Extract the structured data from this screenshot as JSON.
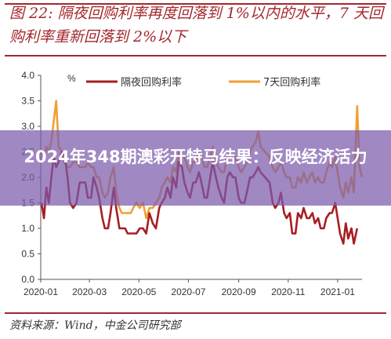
{
  "figure": {
    "title": "图 22: 隔夜回购利率再度回落到 1%以内的水平，7 天回购利率重新回落到 2%以下",
    "source": "资料来源：Wind，中金公司研究部"
  },
  "overlay": {
    "text": "2024年348期澳彩开特马结果：反映经济活力"
  },
  "colors": {
    "accent": "#a3272c",
    "overnight": "#a61e22",
    "seven_day": "#f0a030",
    "overlay": "#7c5aac"
  },
  "chart_data": {
    "type": "line",
    "unit_label": "%",
    "x_ticks": [
      "2020-01",
      "2020-03",
      "2020-05",
      "2020-07",
      "2020-09",
      "2020-11",
      "2021-01"
    ],
    "y_ticks": [
      "0.0",
      "0.5",
      "1.0",
      "1.5",
      "2.0",
      "2.5",
      "3.0",
      "3.5",
      "4.0"
    ],
    "ylim": [
      0,
      4
    ],
    "xlim": [
      "2020-01-01",
      "2021-01-31"
    ],
    "legend_position": "top",
    "series": [
      {
        "name": "隔夜回购利率",
        "points": [
          [
            "2020-01-02",
            1.5
          ],
          [
            "2020-01-05",
            1.2
          ],
          [
            "2020-01-08",
            1.8
          ],
          [
            "2020-01-11",
            1.5
          ],
          [
            "2020-01-14",
            2.0
          ],
          [
            "2020-01-17",
            2.4
          ],
          [
            "2020-01-20",
            2.2
          ],
          [
            "2020-01-23",
            2.3
          ],
          [
            "2020-01-27",
            2.5
          ],
          [
            "2020-01-30",
            2.5
          ],
          [
            "2020-02-03",
            2.0
          ],
          [
            "2020-02-06",
            1.5
          ],
          [
            "2020-02-10",
            1.4
          ],
          [
            "2020-02-14",
            1.5
          ],
          [
            "2020-02-18",
            1.9
          ],
          [
            "2020-02-21",
            1.9
          ],
          [
            "2020-02-25",
            1.9
          ],
          [
            "2020-02-28",
            1.6
          ],
          [
            "2020-03-03",
            1.6
          ],
          [
            "2020-03-06",
            2.0
          ],
          [
            "2020-03-10",
            1.8
          ],
          [
            "2020-03-13",
            1.6
          ],
          [
            "2020-03-17",
            1.2
          ],
          [
            "2020-03-20",
            1.0
          ],
          [
            "2020-03-24",
            1.0
          ],
          [
            "2020-03-27",
            1.3
          ],
          [
            "2020-03-31",
            1.8
          ],
          [
            "2020-04-03",
            1.4
          ],
          [
            "2020-04-07",
            1.0
          ],
          [
            "2020-04-10",
            1.0
          ],
          [
            "2020-04-14",
            1.0
          ],
          [
            "2020-04-17",
            0.9
          ],
          [
            "2020-04-21",
            0.9
          ],
          [
            "2020-04-24",
            0.9
          ],
          [
            "2020-04-28",
            0.9
          ],
          [
            "2020-05-02",
            1.0
          ],
          [
            "2020-05-06",
            1.0
          ],
          [
            "2020-05-10",
            0.9
          ],
          [
            "2020-05-14",
            1.3
          ],
          [
            "2020-05-18",
            1.1
          ],
          [
            "2020-05-22",
            1.0
          ],
          [
            "2020-05-26",
            1.4
          ],
          [
            "2020-05-29",
            1.5
          ],
          [
            "2020-06-02",
            1.6
          ],
          [
            "2020-06-05",
            1.8
          ],
          [
            "2020-06-09",
            1.6
          ],
          [
            "2020-06-12",
            2.0
          ],
          [
            "2020-06-16",
            1.8
          ],
          [
            "2020-06-19",
            2.3
          ],
          [
            "2020-06-23",
            2.2
          ],
          [
            "2020-06-26",
            1.9
          ],
          [
            "2020-06-30",
            1.7
          ],
          [
            "2020-07-03",
            1.6
          ],
          [
            "2020-07-07",
            1.9
          ],
          [
            "2020-07-10",
            1.9
          ],
          [
            "2020-07-14",
            2.1
          ],
          [
            "2020-07-17",
            1.9
          ],
          [
            "2020-07-21",
            1.6
          ],
          [
            "2020-07-24",
            1.6
          ],
          [
            "2020-07-28",
            2.0
          ],
          [
            "2020-07-31",
            2.3
          ],
          [
            "2020-08-04",
            2.0
          ],
          [
            "2020-08-07",
            1.8
          ],
          [
            "2020-08-11",
            1.6
          ],
          [
            "2020-08-14",
            1.5
          ],
          [
            "2020-08-18",
            2.0
          ],
          [
            "2020-08-21",
            2.1
          ],
          [
            "2020-08-25",
            2.0
          ],
          [
            "2020-08-28",
            2.0
          ],
          [
            "2020-09-01",
            1.6
          ],
          [
            "2020-09-04",
            1.5
          ],
          [
            "2020-09-08",
            1.5
          ],
          [
            "2020-09-11",
            1.7
          ],
          [
            "2020-09-15",
            2.0
          ],
          [
            "2020-09-18",
            2.0
          ],
          [
            "2020-09-22",
            2.1
          ],
          [
            "2020-09-25",
            2.2
          ],
          [
            "2020-09-28",
            2.1
          ],
          [
            "2020-10-09",
            1.9
          ],
          [
            "2020-10-13",
            1.5
          ],
          [
            "2020-10-16",
            1.4
          ],
          [
            "2020-10-20",
            1.5
          ],
          [
            "2020-10-23",
            1.7
          ],
          [
            "2020-10-27",
            1.3
          ],
          [
            "2020-10-30",
            1.2
          ],
          [
            "2020-11-03",
            1.3
          ],
          [
            "2020-11-06",
            0.9
          ],
          [
            "2020-11-10",
            0.9
          ],
          [
            "2020-11-13",
            1.3
          ],
          [
            "2020-11-17",
            1.2
          ],
          [
            "2020-11-20",
            1.4
          ],
          [
            "2020-11-24",
            1.2
          ],
          [
            "2020-11-27",
            1.2
          ],
          [
            "2020-12-01",
            1.3
          ],
          [
            "2020-12-04",
            1.1
          ],
          [
            "2020-12-08",
            1.2
          ],
          [
            "2020-12-11",
            1.0
          ],
          [
            "2020-12-15",
            1.0
          ],
          [
            "2020-12-18",
            1.2
          ],
          [
            "2020-12-22",
            1.3
          ],
          [
            "2020-12-25",
            1.3
          ],
          [
            "2020-12-29",
            1.5
          ],
          [
            "2021-01-04",
            0.9
          ],
          [
            "2021-01-08",
            0.7
          ],
          [
            "2021-01-11",
            1.1
          ],
          [
            "2021-01-14",
            0.8
          ],
          [
            "2021-01-18",
            1.0
          ],
          [
            "2021-01-21",
            0.7
          ],
          [
            "2021-01-25",
            1.0
          ]
        ]
      },
      {
        "name": "7天回购利率",
        "points": [
          [
            "2020-01-02",
            2.5
          ],
          [
            "2020-01-05",
            2.4
          ],
          [
            "2020-01-08",
            2.6
          ],
          [
            "2020-01-11",
            2.5
          ],
          [
            "2020-01-14",
            2.7
          ],
          [
            "2020-01-17",
            3.1
          ],
          [
            "2020-01-20",
            3.5
          ],
          [
            "2020-01-23",
            2.6
          ],
          [
            "2020-01-27",
            2.5
          ],
          [
            "2020-01-30",
            2.3
          ],
          [
            "2020-02-03",
            2.2
          ],
          [
            "2020-02-06",
            2.2
          ],
          [
            "2020-02-10",
            2.3
          ],
          [
            "2020-02-14",
            2.3
          ],
          [
            "2020-02-18",
            2.2
          ],
          [
            "2020-02-21",
            2.2
          ],
          [
            "2020-02-25",
            2.2
          ],
          [
            "2020-02-28",
            2.3
          ],
          [
            "2020-03-03",
            2.2
          ],
          [
            "2020-03-06",
            2.2
          ],
          [
            "2020-03-10",
            2.0
          ],
          [
            "2020-03-13",
            2.0
          ],
          [
            "2020-03-17",
            1.7
          ],
          [
            "2020-03-20",
            1.6
          ],
          [
            "2020-03-24",
            1.7
          ],
          [
            "2020-03-27",
            2.0
          ],
          [
            "2020-03-31",
            2.2
          ],
          [
            "2020-04-03",
            1.7
          ],
          [
            "2020-04-07",
            1.4
          ],
          [
            "2020-04-10",
            1.3
          ],
          [
            "2020-04-14",
            1.3
          ],
          [
            "2020-04-17",
            1.3
          ],
          [
            "2020-04-21",
            1.3
          ],
          [
            "2020-04-24",
            1.4
          ],
          [
            "2020-04-28",
            1.5
          ],
          [
            "2020-05-02",
            1.4
          ],
          [
            "2020-05-06",
            1.5
          ],
          [
            "2020-05-10",
            1.2
          ],
          [
            "2020-05-14",
            1.4
          ],
          [
            "2020-05-18",
            1.4
          ],
          [
            "2020-05-22",
            1.5
          ],
          [
            "2020-05-26",
            1.6
          ],
          [
            "2020-05-29",
            1.8
          ],
          [
            "2020-06-02",
            1.9
          ],
          [
            "2020-06-05",
            2.0
          ],
          [
            "2020-06-09",
            1.9
          ],
          [
            "2020-06-12",
            2.2
          ],
          [
            "2020-06-16",
            2.1
          ],
          [
            "2020-06-19",
            2.5
          ],
          [
            "2020-06-23",
            2.4
          ],
          [
            "2020-06-26",
            2.4
          ],
          [
            "2020-06-30",
            2.2
          ],
          [
            "2020-07-03",
            2.1
          ],
          [
            "2020-07-07",
            2.3
          ],
          [
            "2020-07-10",
            2.3
          ],
          [
            "2020-07-14",
            2.5
          ],
          [
            "2020-07-17",
            2.4
          ],
          [
            "2020-07-21",
            2.2
          ],
          [
            "2020-07-24",
            2.2
          ],
          [
            "2020-07-28",
            2.4
          ],
          [
            "2020-07-31",
            2.6
          ],
          [
            "2020-08-04",
            2.3
          ],
          [
            "2020-08-07",
            2.2
          ],
          [
            "2020-08-11",
            2.1
          ],
          [
            "2020-08-14",
            2.1
          ],
          [
            "2020-08-18",
            2.4
          ],
          [
            "2020-08-21",
            2.5
          ],
          [
            "2020-08-25",
            2.4
          ],
          [
            "2020-08-28",
            2.4
          ],
          [
            "2020-09-01",
            2.2
          ],
          [
            "2020-09-04",
            2.1
          ],
          [
            "2020-09-08",
            2.2
          ],
          [
            "2020-09-11",
            2.3
          ],
          [
            "2020-09-15",
            2.5
          ],
          [
            "2020-09-18",
            2.6
          ],
          [
            "2020-09-22",
            2.7
          ],
          [
            "2020-09-25",
            2.9
          ],
          [
            "2020-09-28",
            2.6
          ],
          [
            "2020-10-09",
            2.4
          ],
          [
            "2020-10-13",
            2.2
          ],
          [
            "2020-10-16",
            2.1
          ],
          [
            "2020-10-20",
            2.2
          ],
          [
            "2020-10-23",
            2.3
          ],
          [
            "2020-10-27",
            2.1
          ],
          [
            "2020-10-30",
            2.0
          ],
          [
            "2020-11-03",
            2.0
          ],
          [
            "2020-11-06",
            1.8
          ],
          [
            "2020-11-10",
            1.8
          ],
          [
            "2020-11-13",
            2.0
          ],
          [
            "2020-11-17",
            1.9
          ],
          [
            "2020-11-20",
            2.1
          ],
          [
            "2020-11-24",
            1.9
          ],
          [
            "2020-11-27",
            2.0
          ],
          [
            "2020-12-01",
            2.1
          ],
          [
            "2020-12-04",
            1.9
          ],
          [
            "2020-12-08",
            2.0
          ],
          [
            "2020-12-11",
            1.9
          ],
          [
            "2020-12-15",
            1.9
          ],
          [
            "2020-12-18",
            2.1
          ],
          [
            "2020-12-22",
            2.3
          ],
          [
            "2020-12-25",
            2.2
          ],
          [
            "2020-12-29",
            2.4
          ],
          [
            "2021-01-04",
            1.8
          ],
          [
            "2021-01-08",
            1.6
          ],
          [
            "2021-01-11",
            1.9
          ],
          [
            "2021-01-14",
            1.7
          ],
          [
            "2021-01-18",
            2.0
          ],
          [
            "2021-01-21",
            1.7
          ],
          [
            "2021-01-25",
            3.4
          ],
          [
            "2021-01-28",
            2.2
          ],
          [
            "2021-01-31",
            2.0
          ]
        ]
      }
    ]
  }
}
